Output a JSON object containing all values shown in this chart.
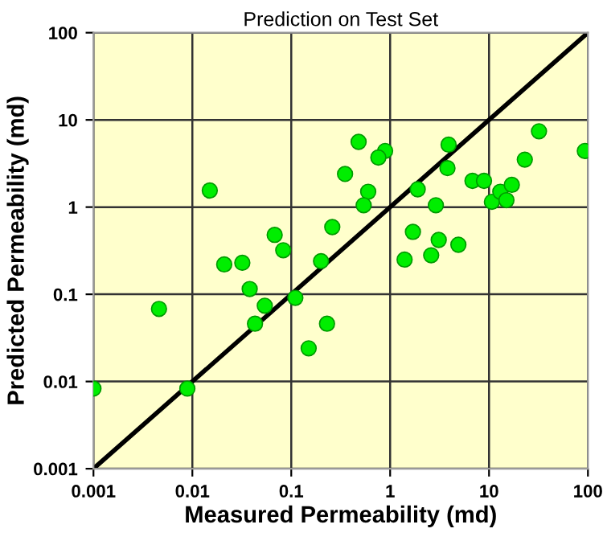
{
  "chart_data": {
    "type": "scatter",
    "title": "Prediction on Test Set",
    "xlabel": "Measured Permeability (md)",
    "ylabel": "Predicted Permeability (md)",
    "log": "xy",
    "grid": true,
    "xlim": [
      0.001,
      100
    ],
    "ylim": [
      0.001,
      100
    ],
    "xticks": [
      0.001,
      0.01,
      0.1,
      1,
      10,
      100
    ],
    "yticks": [
      0.001,
      0.01,
      0.1,
      1,
      10,
      100
    ],
    "series": [
      {
        "color": "#00ee00",
        "marker": "circle",
        "x": [
          0.001,
          0.0089,
          0.0046,
          0.015,
          0.021,
          0.032,
          0.038,
          0.054,
          0.043,
          0.068,
          0.083,
          0.11,
          0.23,
          0.15,
          0.2,
          0.26,
          0.35,
          0.48,
          0.89,
          0.76,
          0.6,
          0.54,
          1.9,
          2.9,
          3.9,
          3.8,
          1.7,
          3.1,
          4.9,
          1.4,
          2.6,
          6.8,
          8.9,
          10.7,
          13,
          15,
          17,
          23,
          32,
          93
        ],
        "values": [
          0.0083,
          0.0083,
          0.068,
          1.55,
          0.22,
          0.23,
          0.115,
          0.074,
          0.046,
          0.48,
          0.32,
          0.091,
          0.046,
          0.024,
          0.24,
          0.59,
          2.4,
          5.6,
          4.4,
          3.7,
          1.5,
          1.05,
          1.6,
          1.05,
          5.2,
          2.8,
          0.52,
          0.42,
          0.37,
          0.25,
          0.28,
          2.0,
          2.0,
          1.15,
          1.5,
          1.2,
          1.8,
          3.5,
          7.4,
          4.4
        ]
      },
      {
        "type": "line",
        "color": "#000000",
        "marker": "none",
        "x": [
          0.001,
          100
        ],
        "values": [
          0.001,
          100
        ]
      }
    ]
  }
}
